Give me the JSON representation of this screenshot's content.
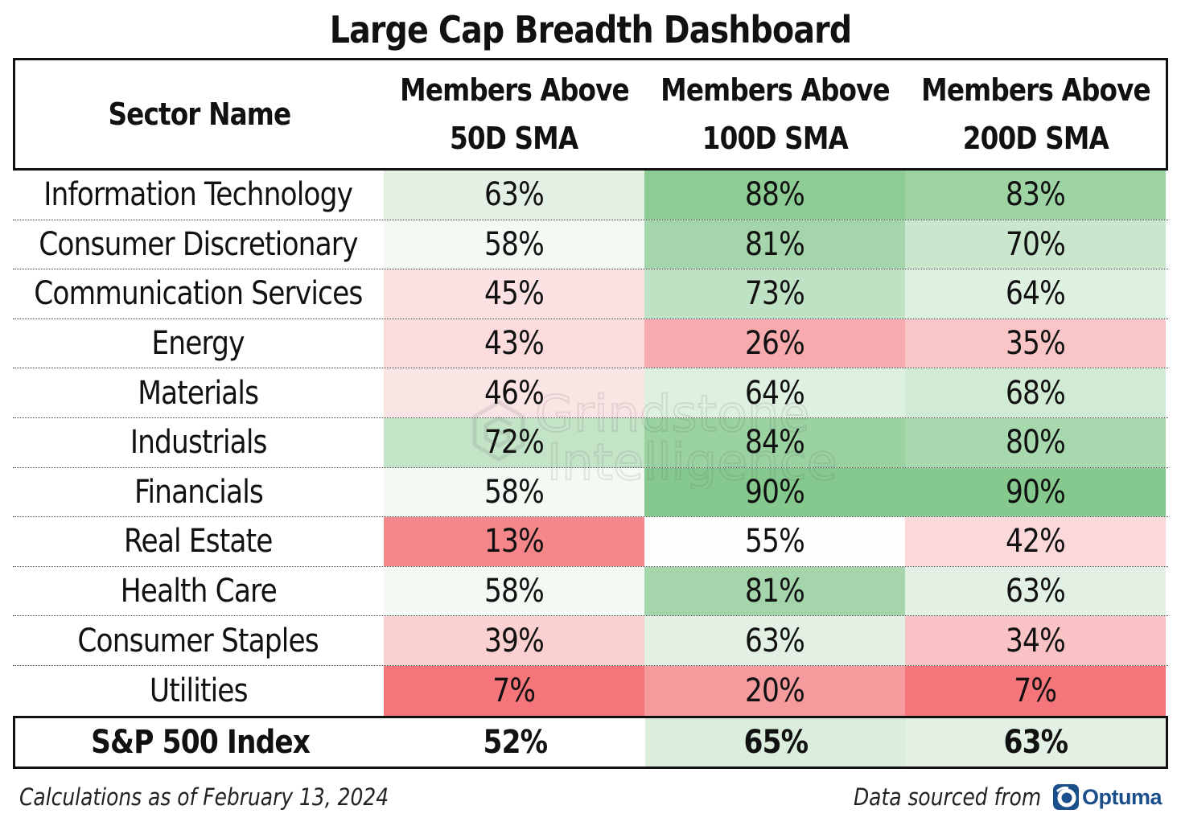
{
  "title": "Large Cap Breadth Dashboard",
  "columns": [
    "Sector Name",
    "Members Above 50D SMA",
    "Members Above 100D SMA",
    "Members Above 200D SMA"
  ],
  "header_lines": [
    [
      "Sector Name"
    ],
    [
      "Members Above",
      "50D SMA"
    ],
    [
      "Members Above",
      "100D SMA"
    ],
    [
      "Members Above",
      "200D SMA"
    ]
  ],
  "chart_data": {
    "type": "table",
    "title": "Large Cap Breadth Dashboard",
    "columns": [
      "Sector Name",
      "Members Above 50D SMA",
      "Members Above 100D SMA",
      "Members Above 200D SMA"
    ],
    "rows": [
      {
        "sector": "Information Technology",
        "values": [
          63,
          88,
          83
        ]
      },
      {
        "sector": "Consumer Discretionary",
        "values": [
          58,
          81,
          70
        ]
      },
      {
        "sector": "Communication Services",
        "values": [
          45,
          73,
          64
        ]
      },
      {
        "sector": "Energy",
        "values": [
          43,
          26,
          35
        ]
      },
      {
        "sector": "Materials",
        "values": [
          46,
          64,
          68
        ]
      },
      {
        "sector": "Industrials",
        "values": [
          72,
          84,
          80
        ]
      },
      {
        "sector": "Financials",
        "values": [
          58,
          90,
          90
        ]
      },
      {
        "sector": "Real Estate",
        "values": [
          13,
          55,
          42
        ]
      },
      {
        "sector": "Health Care",
        "values": [
          58,
          81,
          63
        ]
      },
      {
        "sector": "Consumer Staples",
        "values": [
          39,
          63,
          34
        ]
      },
      {
        "sector": "Utilities",
        "values": [
          7,
          20,
          7
        ]
      }
    ],
    "total": {
      "sector": "S&P 500 Index",
      "values": [
        52,
        65,
        63
      ]
    },
    "unit": "%",
    "color_scale": {
      "low": "#f4767a",
      "mid": "#fdfdfd",
      "high": "#86c98e"
    }
  },
  "footer": {
    "note": "Calculations as of February 13, 2024",
    "source_label": "Data sourced from",
    "source_logo_text": "Optuma"
  },
  "watermark": {
    "line1": "Grindstone",
    "line2": "Intelligence"
  }
}
